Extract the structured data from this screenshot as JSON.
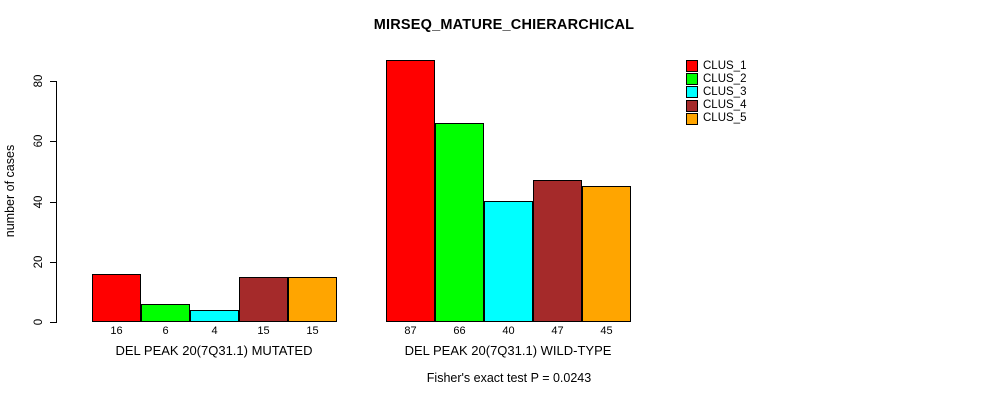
{
  "title": "MIRSEQ_MATURE_CHIERARCHICAL",
  "chart_data": {
    "type": "bar",
    "title": "MIRSEQ_MATURE_CHIERARCHICAL",
    "xlabel": "",
    "ylabel": "number of cases",
    "ylim": [
      0,
      87
    ],
    "yticks": [
      0,
      20,
      40,
      60,
      80
    ],
    "grid": false,
    "legend_position": "top-right",
    "bar_value_labels_shown": true,
    "categories": [
      "DEL PEAK 20(7Q31.1) MUTATED",
      "DEL PEAK 20(7Q31.1) WILD-TYPE"
    ],
    "series": [
      {
        "name": "CLUS_1",
        "color": "#FF0000",
        "values": [
          16,
          87
        ]
      },
      {
        "name": "CLUS_2",
        "color": "#00FF00",
        "values": [
          6,
          66
        ]
      },
      {
        "name": "CLUS_3",
        "color": "#00FFFF",
        "values": [
          4,
          40
        ]
      },
      {
        "name": "CLUS_4",
        "color": "#A52A2A",
        "values": [
          15,
          47
        ]
      },
      {
        "name": "CLUS_5",
        "color": "#FFA500",
        "values": [
          15,
          45
        ]
      }
    ],
    "annotation": "Fisher's exact test P = 0.0243"
  },
  "colors": {
    "background": "#FFFFFF",
    "axis": "#000000",
    "bar_border": "#000000",
    "text": "#000000"
  }
}
